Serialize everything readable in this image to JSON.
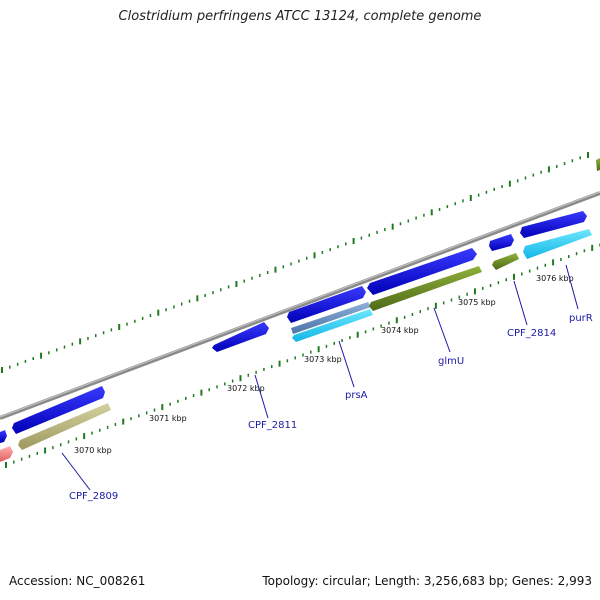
{
  "title": "Clostridium perfringens ATCC 13124, complete genome",
  "footer": {
    "accession": "Accession: NC_008261",
    "summary": "Topology: circular; Length: 3,256,683 bp; Genes: 2,993"
  },
  "colors": {
    "backbone": "#8a8a8a",
    "tick_green": "#1f7a1f",
    "forward_cds": "#1414e0",
    "reverse_cds_light": "#22ccf0",
    "trna_olive": "#6b8a25",
    "pseudogene_khaki": "#b8b47a",
    "rrna_pink": "#f08080",
    "label_blue": "#1a1aa6"
  },
  "kbp_labels": [
    "3070 kbp",
    "3071 kbp",
    "3072 kbp",
    "3073 kbp",
    "3074 kbp",
    "3075 kbp",
    "3076 kbp"
  ],
  "gene_labels": [
    "CPF_2809",
    "CPF_2811",
    "prsA",
    "glmU",
    "CPF_2814",
    "purR"
  ]
}
